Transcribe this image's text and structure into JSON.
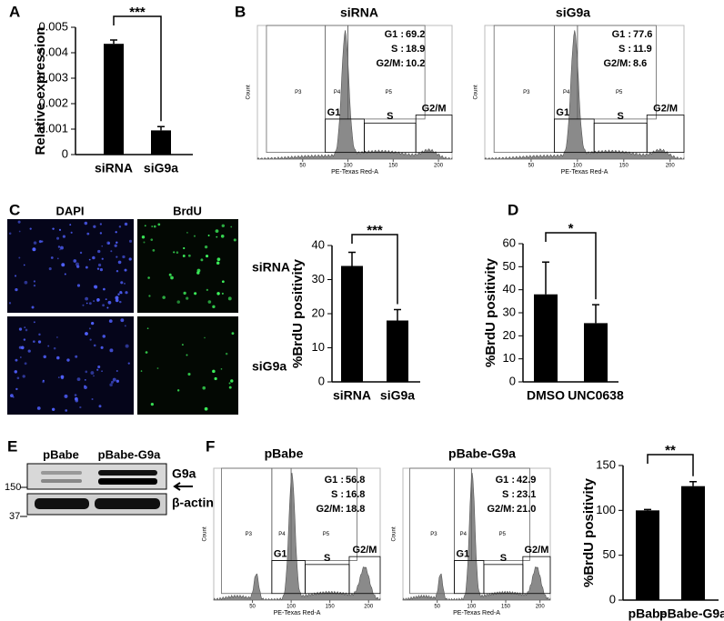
{
  "panel_letters": [
    "A",
    "B",
    "C",
    "D",
    "E",
    "F"
  ],
  "chart_data": [
    {
      "type": "bar",
      "ylabel": "Relative expression",
      "categories": [
        "siRNA",
        "siG9a"
      ],
      "values": [
        0.00435,
        0.00095
      ],
      "errors": [
        0.00015,
        0.00015
      ],
      "color": "#000000",
      "ylim": [
        0,
        0.005
      ],
      "yticks": [
        0,
        0.001,
        0.002,
        0.003,
        0.004,
        0.005
      ],
      "significance": "***"
    },
    {
      "type": "bar",
      "ylabel": "%BrdU positivity",
      "categories": [
        "siRNA",
        "siG9a"
      ],
      "values": [
        34,
        18
      ],
      "errors": [
        4,
        3.2
      ],
      "color": "#000000",
      "ylim": [
        0,
        40
      ],
      "yticks": [
        0,
        10,
        20,
        30,
        40
      ],
      "significance": "***"
    },
    {
      "type": "bar",
      "ylabel": "%BrdU positivity",
      "categories": [
        "DMSO",
        "UNC0638"
      ],
      "values": [
        38,
        25.5
      ],
      "errors": [
        14,
        8
      ],
      "color": "#000000",
      "ylim": [
        0,
        60
      ],
      "yticks": [
        0,
        10,
        20,
        30,
        40,
        50,
        60
      ],
      "significance": "*"
    },
    {
      "type": "bar",
      "ylabel": "%BrdU positivity",
      "categories": [
        "pBabe",
        "pBabe-G9a"
      ],
      "values": [
        100,
        127
      ],
      "errors": [
        1,
        5
      ],
      "color": "#000000",
      "ylim": [
        0,
        150
      ],
      "yticks": [
        0,
        50,
        100,
        150
      ],
      "significance": "**"
    }
  ],
  "flow_panels": [
    {
      "title": "siRNA",
      "stats": [
        {
          "label": "G1 :",
          "value": "69.2"
        },
        {
          "label": "S :",
          "value": "18.9"
        },
        {
          "label": "G2/M:",
          "value": "10.2"
        }
      ],
      "gates": [
        "P3",
        "P4",
        "P5"
      ],
      "phases": [
        "G1",
        "S",
        "G2/M"
      ],
      "xlabel": "PE-Texas Red-A",
      "ylabel": "Count",
      "xticks": [
        50,
        100,
        150,
        200
      ]
    },
    {
      "title": "siG9a",
      "stats": [
        {
          "label": "G1 :",
          "value": "77.6"
        },
        {
          "label": "S :",
          "value": "11.9"
        },
        {
          "label": "G2/M:",
          "value": "8.6"
        }
      ],
      "gates": [
        "P3",
        "P4",
        "P5"
      ],
      "phases": [
        "G1",
        "S",
        "G2/M"
      ],
      "xlabel": "PE-Texas Red-A",
      "ylabel": "Count",
      "xticks": [
        50,
        100,
        150,
        200
      ]
    },
    {
      "title": "pBabe",
      "stats": [
        {
          "label": "G1 :",
          "value": "56.8"
        },
        {
          "label": "S :",
          "value": "16.8"
        },
        {
          "label": "G2/M:",
          "value": "18.8"
        }
      ],
      "gates": [
        "P3",
        "P4",
        "P5"
      ],
      "phases": [
        "G1",
        "S",
        "G2/M"
      ],
      "xlabel": "PE-Texas Red-A",
      "ylabel": "Count",
      "xticks": [
        50,
        100,
        150,
        200
      ]
    },
    {
      "title": "pBabe-G9a",
      "stats": [
        {
          "label": "G1 :",
          "value": "42.9"
        },
        {
          "label": "S :",
          "value": "23.1"
        },
        {
          "label": "G2/M:",
          "value": "21.0"
        }
      ],
      "gates": [
        "P3",
        "P4",
        "P5"
      ],
      "phases": [
        "G1",
        "S",
        "G2/M"
      ],
      "xlabel": "PE-Texas Red-A",
      "ylabel": "Count",
      "xticks": [
        50,
        100,
        150,
        200
      ]
    }
  ],
  "microscopy": {
    "columns": [
      "DAPI",
      "BrdU"
    ],
    "rows": [
      "siRNA",
      "siG9a"
    ]
  },
  "western_blot": {
    "lanes": [
      "pBabe",
      "pBabe-G9a"
    ],
    "bands": [
      "G9a",
      "β-actin"
    ],
    "markers": [
      150,
      37
    ]
  }
}
